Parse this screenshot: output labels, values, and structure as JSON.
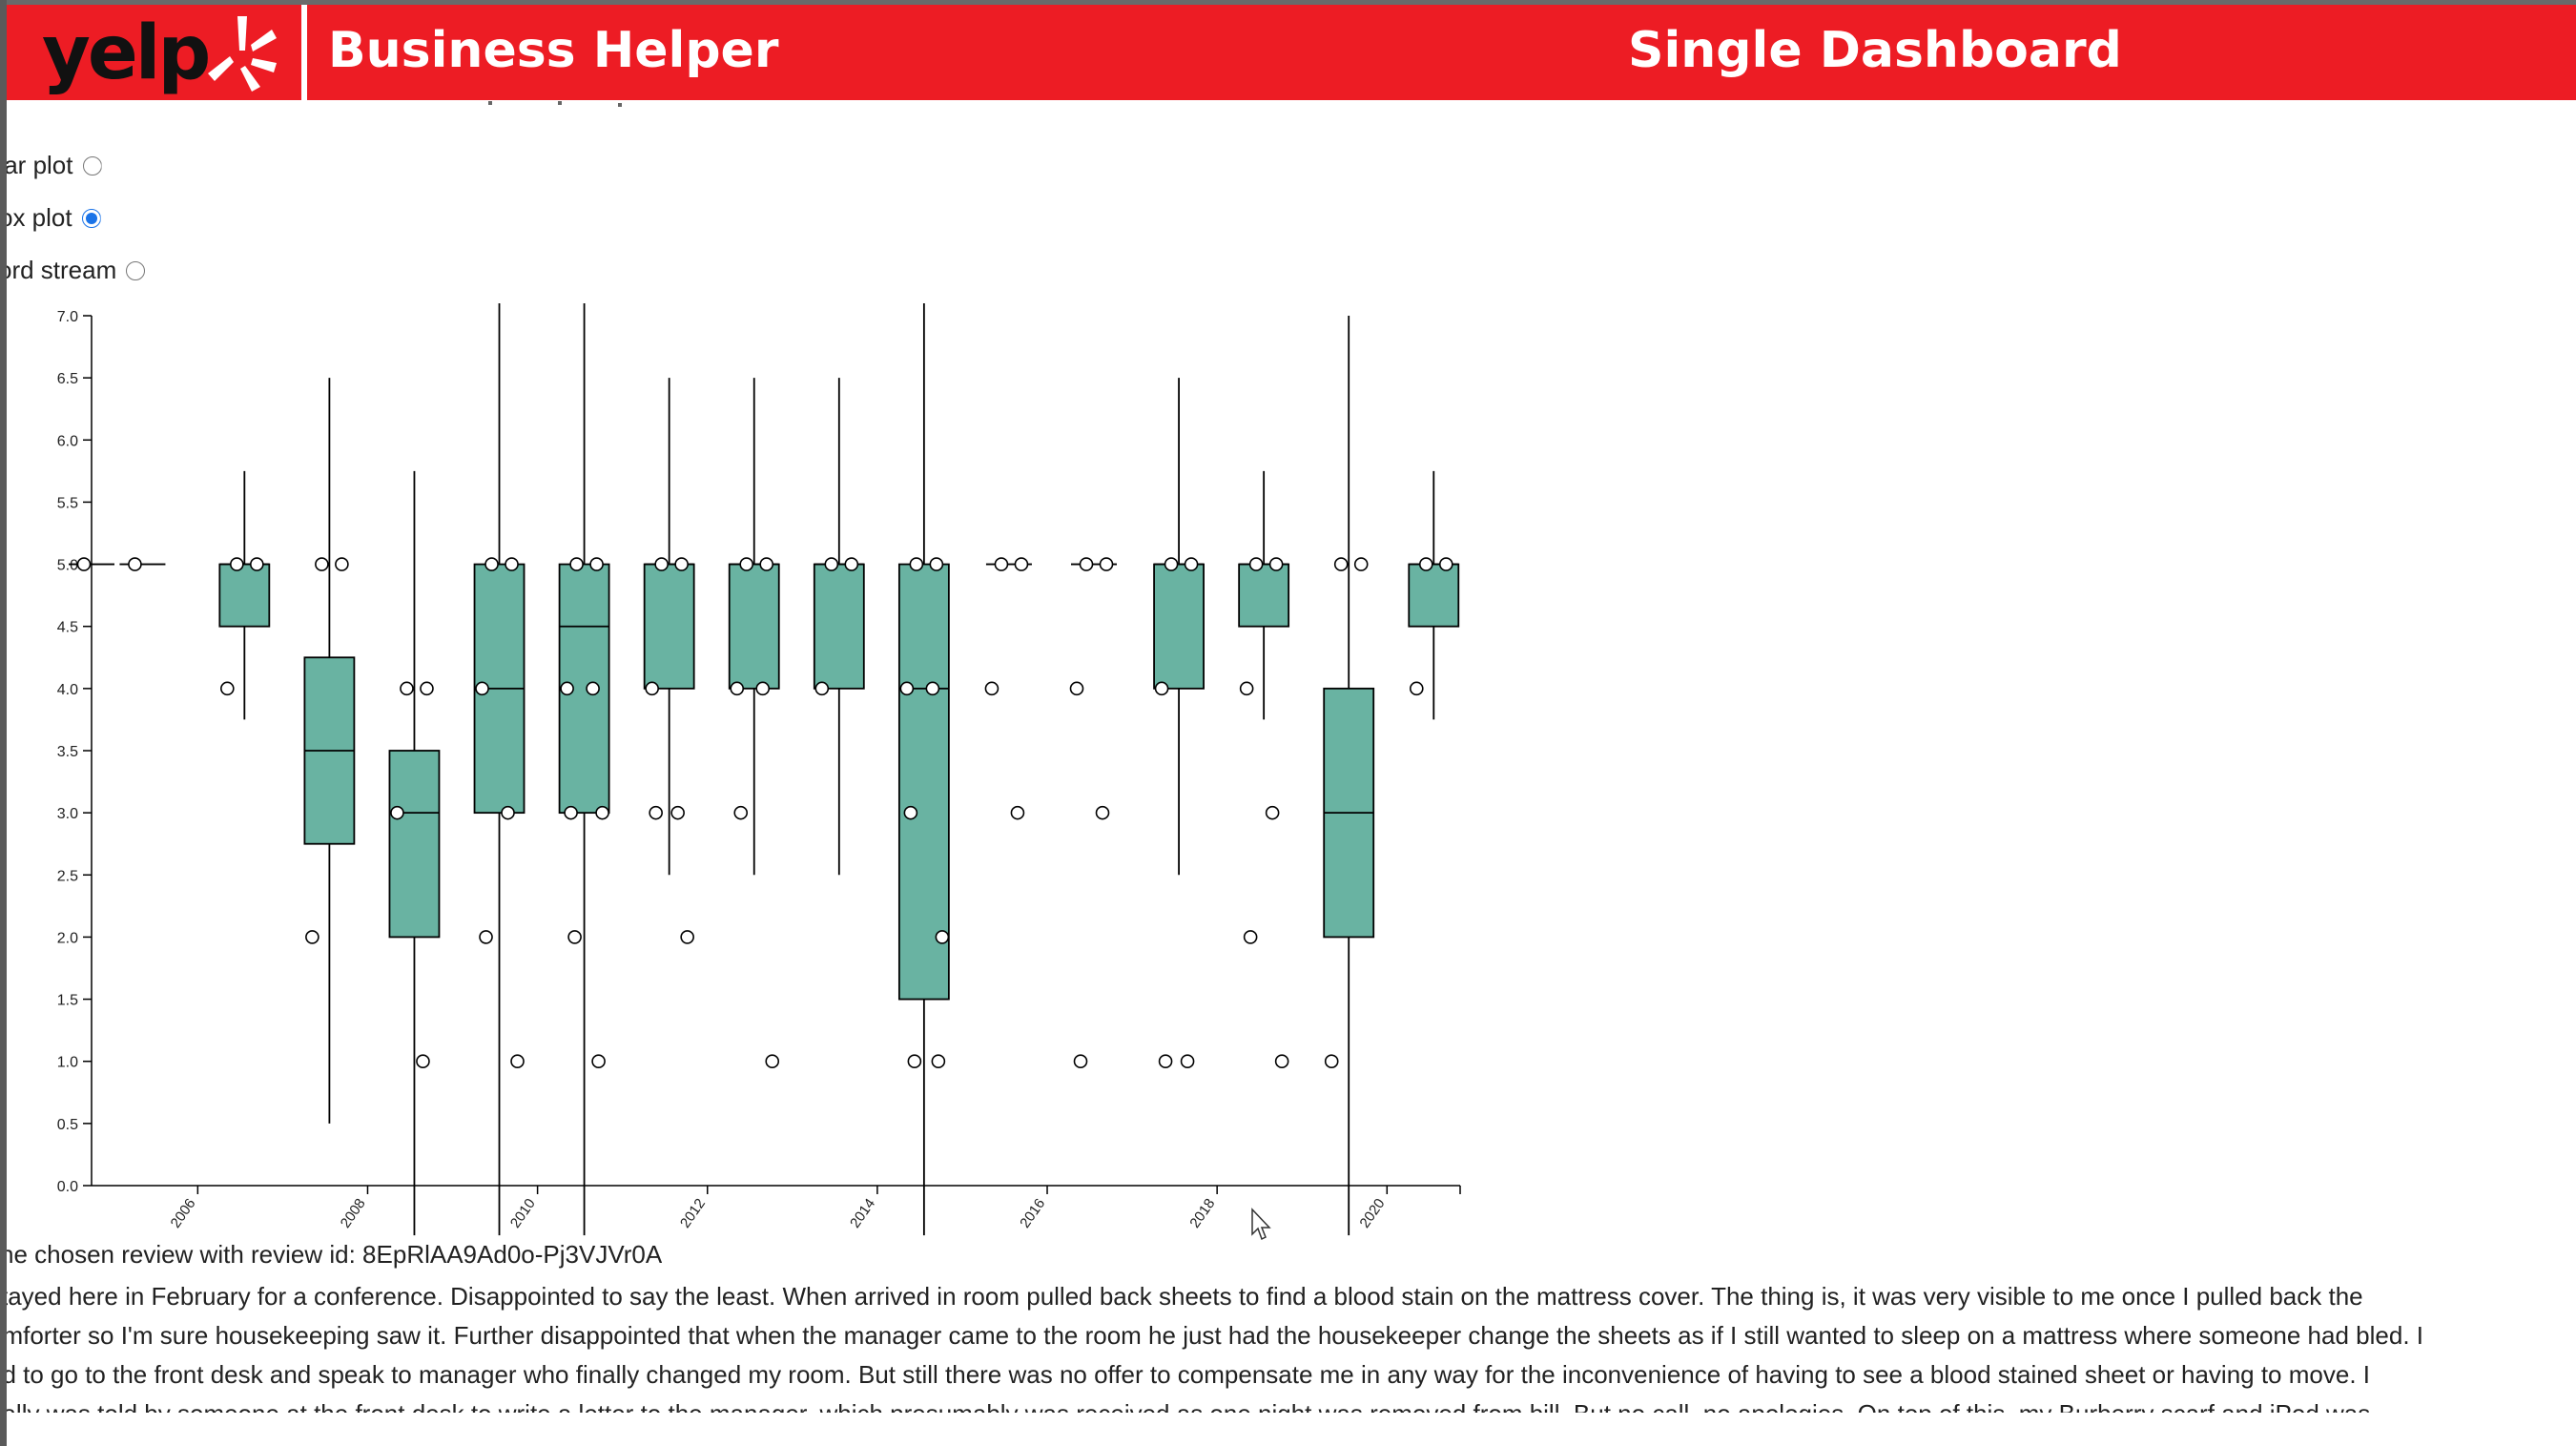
{
  "header": {
    "logo_text": "yelp",
    "app_title": "Business Helper",
    "dashboard_title": "Single Dashboard",
    "background_color": "#ed1c24"
  },
  "plot_options": [
    {
      "label": "tar plot",
      "selected": false
    },
    {
      "label": "ox plot",
      "selected": true
    },
    {
      "label": "ord stream",
      "selected": false
    }
  ],
  "chart_data": {
    "type": "boxplot",
    "y_ticks": [
      "0.0",
      "0.5",
      "1.0",
      "1.5",
      "2.0",
      "2.5",
      "3.0",
      "3.5",
      "4.0",
      "4.5",
      "5.0",
      "5.5",
      "6.0",
      "6.5",
      "7.0"
    ],
    "x_ticks": [
      "2006",
      "2008",
      "2010",
      "2012",
      "2014",
      "2016",
      "2018",
      "2020"
    ],
    "box_color": "#69b3a2",
    "ylim": [
      0,
      7
    ],
    "xlim": [
      2005.5,
      2021.6
    ],
    "boxes": [
      {
        "x": 2005.5,
        "q1": 5.0,
        "median": 5.0,
        "q3": 5.0,
        "wlo": 5.0,
        "whi": 5.0,
        "points": [
          5.0
        ]
      },
      {
        "x": 2006.1,
        "q1": 5.0,
        "median": 5.0,
        "q3": 5.0,
        "wlo": 5.0,
        "whi": 5.0,
        "points": [
          5.0
        ]
      },
      {
        "x": 2007.3,
        "q1": 4.5,
        "median": 5.0,
        "q3": 5.0,
        "wlo": 3.75,
        "whi": 5.75,
        "points": [
          5.0,
          5.0,
          4.0
        ]
      },
      {
        "x": 2008.3,
        "q1": 2.75,
        "median": 3.5,
        "q3": 4.25,
        "wlo": 0.5,
        "whi": 6.5,
        "points": [
          5.0,
          5.0,
          2.0
        ]
      },
      {
        "x": 2009.3,
        "q1": 2.0,
        "median": 3.0,
        "q3": 3.5,
        "wlo": -0.4,
        "whi": 5.75,
        "points": [
          4.0,
          4.0,
          3.0,
          1.0
        ]
      },
      {
        "x": 2010.3,
        "q1": 3.0,
        "median": 4.0,
        "q3": 5.0,
        "wlo": -0.4,
        "whi": 7.1,
        "points": [
          5.0,
          5.0,
          4.0,
          3.0,
          2.0,
          1.0
        ]
      },
      {
        "x": 2011.3,
        "q1": 3.0,
        "median": 4.5,
        "q3": 5.0,
        "wlo": -0.4,
        "whi": 7.1,
        "points": [
          5.0,
          5.0,
          4.0,
          4.0,
          3.0,
          3.0,
          2.0,
          1.0
        ]
      },
      {
        "x": 2012.3,
        "q1": 4.0,
        "median": 5.0,
        "q3": 5.0,
        "wlo": 2.5,
        "whi": 6.5,
        "points": [
          5.0,
          5.0,
          4.0,
          3.0,
          3.0,
          2.0
        ]
      },
      {
        "x": 2013.3,
        "q1": 4.0,
        "median": 5.0,
        "q3": 5.0,
        "wlo": 2.5,
        "whi": 6.5,
        "points": [
          5.0,
          5.0,
          4.0,
          4.0,
          3.0,
          1.0
        ]
      },
      {
        "x": 2014.3,
        "q1": 4.0,
        "median": 5.0,
        "q3": 5.0,
        "wlo": 2.5,
        "whi": 6.5,
        "points": [
          5.0,
          5.0,
          4.0
        ]
      },
      {
        "x": 2015.3,
        "q1": 1.5,
        "median": 4.0,
        "q3": 5.0,
        "wlo": -0.4,
        "whi": 7.1,
        "points": [
          5.0,
          5.0,
          4.0,
          4.0,
          3.0,
          2.0,
          1.0,
          1.0
        ]
      },
      {
        "x": 2016.3,
        "q1": 5.0,
        "median": 5.0,
        "q3": 5.0,
        "wlo": 5.0,
        "whi": 5.0,
        "points": [
          5.0,
          5.0,
          4.0,
          3.0
        ]
      },
      {
        "x": 2017.3,
        "q1": 5.0,
        "median": 5.0,
        "q3": 5.0,
        "wlo": 5.0,
        "whi": 5.0,
        "points": [
          5.0,
          5.0,
          4.0,
          3.0,
          1.0
        ]
      },
      {
        "x": 2018.3,
        "q1": 4.0,
        "median": 5.0,
        "q3": 5.0,
        "wlo": 2.5,
        "whi": 6.5,
        "points": [
          5.0,
          5.0,
          4.0,
          1.0,
          1.0
        ]
      },
      {
        "x": 2019.3,
        "q1": 4.5,
        "median": 5.0,
        "q3": 5.0,
        "wlo": 3.75,
        "whi": 5.75,
        "points": [
          5.0,
          5.0,
          4.0,
          3.0,
          2.0,
          1.0
        ]
      },
      {
        "x": 2020.3,
        "q1": 2.0,
        "median": 3.0,
        "q3": 4.0,
        "wlo": -0.4,
        "whi": 7.0,
        "points": [
          5.0,
          5.0,
          1.0
        ]
      },
      {
        "x": 2021.3,
        "q1": 4.5,
        "median": 5.0,
        "q3": 5.0,
        "wlo": 3.75,
        "whi": 5.75,
        "points": [
          5.0,
          5.0,
          4.0
        ]
      }
    ]
  },
  "review": {
    "id_line": "he chosen review with review id: 8EpRlAA9Ad0o-Pj3VJVr0A",
    "lines": [
      "stayed here in February for a conference. Disappointed to say the least. When arrived in room pulled back sheets to find a blood stain on the mattress cover. The thing is, it was very visible to me once I pulled back the",
      "omforter so I'm sure housekeeping saw it. Further disappointed that when the manager came to the room he just had the housekeeper change the sheets as if I still wanted to sleep on a mattress where someone had bled. I",
      "ad to go to the front desk and speak to manager who finally changed my room. But still there was no offer to compensate me in any way for the inconvenience of having to see a blood stained sheet or having to move. I",
      "nally was told by someone at the front desk to write a letter to the manager, which presumably was received as one night was removed from bill. But no call, no apologies. On top of this, my Burberry scarf and iPod was"
    ]
  }
}
